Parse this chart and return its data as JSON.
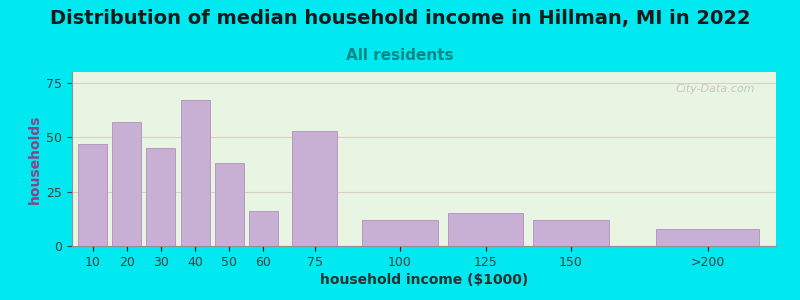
{
  "title": "Distribution of median household income in Hillman, MI in 2022",
  "subtitle": "All residents",
  "xlabel": "household income ($1000)",
  "ylabel": "households",
  "bar_labels": [
    "10",
    "20",
    "30",
    "40",
    "50",
    "60",
    "75",
    "100",
    "125",
    "150",
    ">200"
  ],
  "bar_values": [
    47,
    57,
    45,
    67,
    38,
    16,
    53,
    12,
    15,
    12,
    8
  ],
  "bar_color": "#c8afd4",
  "bar_edgecolor": "#b090c0",
  "ylim": [
    0,
    80
  ],
  "yticks": [
    0,
    25,
    50,
    75
  ],
  "outer_bg": "#00e8f0",
  "plot_bg_left": "#e8f5e2",
  "plot_bg_right": "#f5f5ee",
  "title_fontsize": 14,
  "subtitle_fontsize": 11,
  "subtitle_color": "#008888",
  "axis_label_fontsize": 10,
  "tick_fontsize": 9,
  "watermark": "City-Data.com",
  "ylabel_color": "#884488",
  "xlabel_color": "#303030",
  "tick_color": "#404040",
  "bar_positions": [
    0,
    1,
    2,
    3,
    4,
    5,
    6.5,
    9,
    11.5,
    14,
    18
  ],
  "bar_widths": [
    0.85,
    0.85,
    0.85,
    0.85,
    0.85,
    0.85,
    1.3,
    2.2,
    2.2,
    2.2,
    3.0
  ]
}
